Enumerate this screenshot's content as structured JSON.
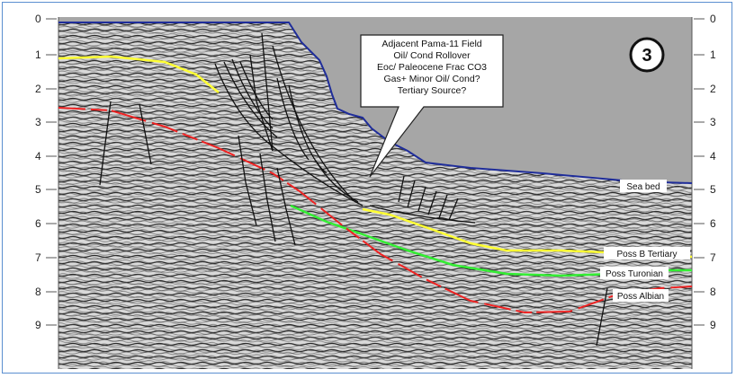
{
  "axis": {
    "left_ticks": [
      "0",
      "1",
      "2",
      "3",
      "4",
      "5",
      "6",
      "7",
      "8",
      "9"
    ],
    "right_ticks": [
      "0",
      "1",
      "2",
      "3",
      "4",
      "5",
      "6",
      "7",
      "8",
      "9"
    ]
  },
  "badge": "3",
  "callout": {
    "lines": [
      "Adjacent Pama-11 Field",
      "Oil/ Cond Rollover",
      "Eoc/ Paleocene Frac CO3",
      "Gas+ Minor Oil/ Cond?",
      "Tertiary Source?"
    ]
  },
  "horizon_labels": {
    "sea_bed": "Sea bed",
    "poss_b_tertiary": "Poss B Tertiary",
    "poss_turonian": "Poss Turonian",
    "poss_albian": "Poss Albian"
  },
  "colors": {
    "water": "#a6a6a6",
    "sea_bed": "#1f2d9a",
    "tertiary": "#ffff33",
    "turonian": "#33ee33",
    "albian": "#ee2222",
    "faults": "#111111"
  }
}
